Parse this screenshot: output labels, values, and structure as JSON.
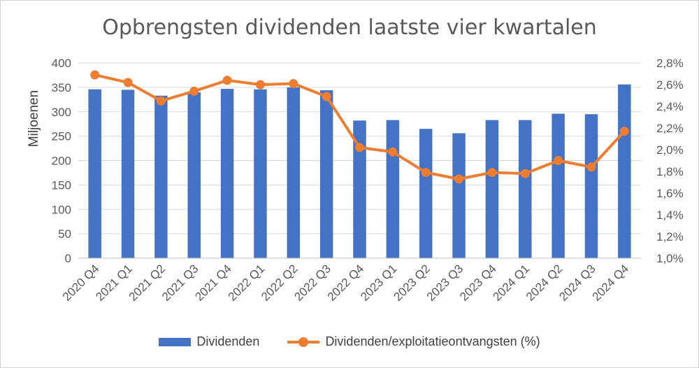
{
  "chart_data": {
    "type": "bar",
    "title": "Opbrengsten dividenden laatste vier kwartalen",
    "ylabel": "Miljoenen",
    "ylim": [
      0,
      400
    ],
    "yticks": [
      "0",
      "50",
      "100",
      "150",
      "200",
      "250",
      "300",
      "350",
      "400"
    ],
    "y2lim": [
      1.0,
      2.8
    ],
    "y2ticks": [
      "1,0%",
      "1,2%",
      "1,4%",
      "1,6%",
      "1,8%",
      "2,0%",
      "2,2%",
      "2,4%",
      "2,6%",
      "2,8%"
    ],
    "categories": [
      "2020 Q4",
      "2021 Q1",
      "2021 Q2",
      "2021 Q3",
      "2021 Q4",
      "2022 Q1",
      "2022 Q2",
      "2022 Q3",
      "2022 Q4",
      "2023 Q1",
      "2023 Q2",
      "2023 Q3",
      "2023 Q4",
      "2024 Q1",
      "2024 Q2",
      "2024 Q3",
      "2024 Q4"
    ],
    "series": [
      {
        "name": "Dividenden",
        "type": "bar",
        "axis": "left",
        "color": "#4472C4",
        "values": [
          346,
          345,
          333,
          340,
          347,
          346,
          350,
          344,
          282,
          283,
          265,
          256,
          283,
          283,
          296,
          295,
          356
        ]
      },
      {
        "name": "Dividenden/exploitatieontvangsten (%)",
        "type": "line",
        "axis": "right",
        "color": "#ED7D31",
        "values": [
          2.69,
          2.62,
          2.45,
          2.54,
          2.64,
          2.6,
          2.61,
          2.49,
          2.02,
          1.98,
          1.79,
          1.73,
          1.79,
          1.78,
          1.9,
          1.84,
          2.17
        ]
      }
    ],
    "grid": true,
    "legend": "bottom"
  }
}
